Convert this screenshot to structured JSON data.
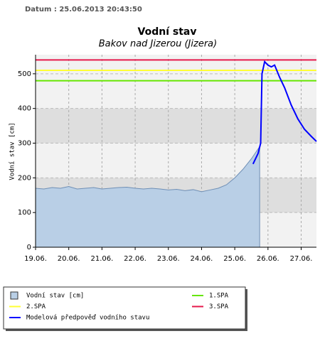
{
  "header": "Datum : 25.06.2013 20:43:50",
  "chart_data": {
    "type": "line",
    "title": "Vodní stav",
    "subtitle": "Bakov nad Jizerou (Jizera)",
    "y_label": "Vodní stav [cm]",
    "xlim": [
      19,
      27.46
    ],
    "ylim": [
      0,
      555
    ],
    "xticks": [
      {
        "value": 19,
        "label": "19.06."
      },
      {
        "value": 20,
        "label": "20.06."
      },
      {
        "value": 21,
        "label": "21.06."
      },
      {
        "value": 22,
        "label": "22.06."
      },
      {
        "value": 23,
        "label": "23.06."
      },
      {
        "value": 24,
        "label": "24.06."
      },
      {
        "value": 25,
        "label": "25.06."
      },
      {
        "value": 26,
        "label": "26.06."
      },
      {
        "value": 27,
        "label": "27.06."
      }
    ],
    "yticks": [
      0,
      100,
      200,
      300,
      400,
      500
    ],
    "grid": true,
    "series": [
      {
        "name": "Vodní stav [cm]",
        "kind": "area",
        "color": "#b9cfe6",
        "x": [
          19,
          19.25,
          19.5,
          19.75,
          20,
          20.25,
          20.5,
          20.75,
          21,
          21.25,
          21.5,
          21.75,
          22,
          22.25,
          22.5,
          22.75,
          23,
          23.25,
          23.5,
          23.75,
          24,
          24.25,
          24.5,
          24.75,
          25,
          25.25,
          25.5,
          25.75
        ],
        "values": [
          170,
          168,
          172,
          170,
          175,
          168,
          170,
          172,
          168,
          170,
          172,
          173,
          170,
          168,
          170,
          168,
          165,
          167,
          163,
          166,
          160,
          165,
          170,
          180,
          200,
          225,
          255,
          290
        ]
      },
      {
        "name": "1.SPA",
        "kind": "hline",
        "color": "#66e600",
        "values": [
          480
        ]
      },
      {
        "name": "2.SPA",
        "kind": "hline",
        "color": "#ffff33",
        "values": [
          510
        ]
      },
      {
        "name": "3.SPA",
        "kind": "hline",
        "color": "#e6194b",
        "values": [
          540
        ]
      },
      {
        "name": "Modelová předpověď vodního stavu",
        "kind": "line",
        "color": "#0000ff",
        "x": [
          25.55,
          25.7,
          25.78,
          25.82,
          25.9,
          26.0,
          26.1,
          26.2,
          26.35,
          26.5,
          26.7,
          26.9,
          27.1,
          27.3,
          27.46
        ],
        "values": [
          240,
          270,
          300,
          500,
          535,
          525,
          520,
          525,
          490,
          460,
          410,
          370,
          340,
          320,
          305
        ]
      }
    ]
  }
}
